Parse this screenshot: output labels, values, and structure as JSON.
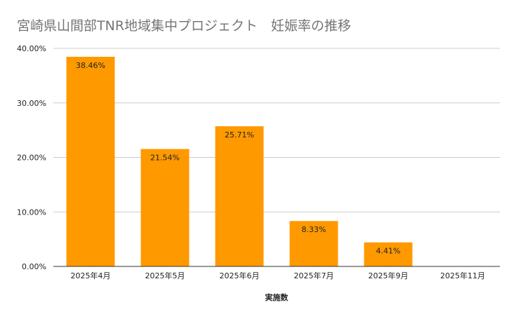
{
  "chart_data": {
    "type": "bar",
    "title": "宮崎県山間部TNR地域集中プロジェクト　妊娠率の推移",
    "categories": [
      "2025年4月",
      "2025年5月",
      "2025年6月",
      "2025年7月",
      "2025年9月",
      "2025年11月"
    ],
    "series": [
      {
        "values": [
          38.46,
          21.54,
          25.71,
          8.33,
          4.41,
          0
        ]
      }
    ],
    "data_labels": [
      "38.46%",
      "21.54%",
      "25.71%",
      "8.33%",
      "4.41%",
      ""
    ],
    "xlabel": "実施数",
    "ylabel": "",
    "ylim": [
      0,
      40
    ],
    "yticks": [
      0,
      10,
      20,
      30,
      40
    ],
    "ytick_labels": [
      "0.00%",
      "10.00%",
      "20.00%",
      "30.00%",
      "40.00%"
    ],
    "grid": true,
    "bar_color": "#ff9900",
    "grid_color": "#cccccc",
    "axis_color": "#333333"
  }
}
